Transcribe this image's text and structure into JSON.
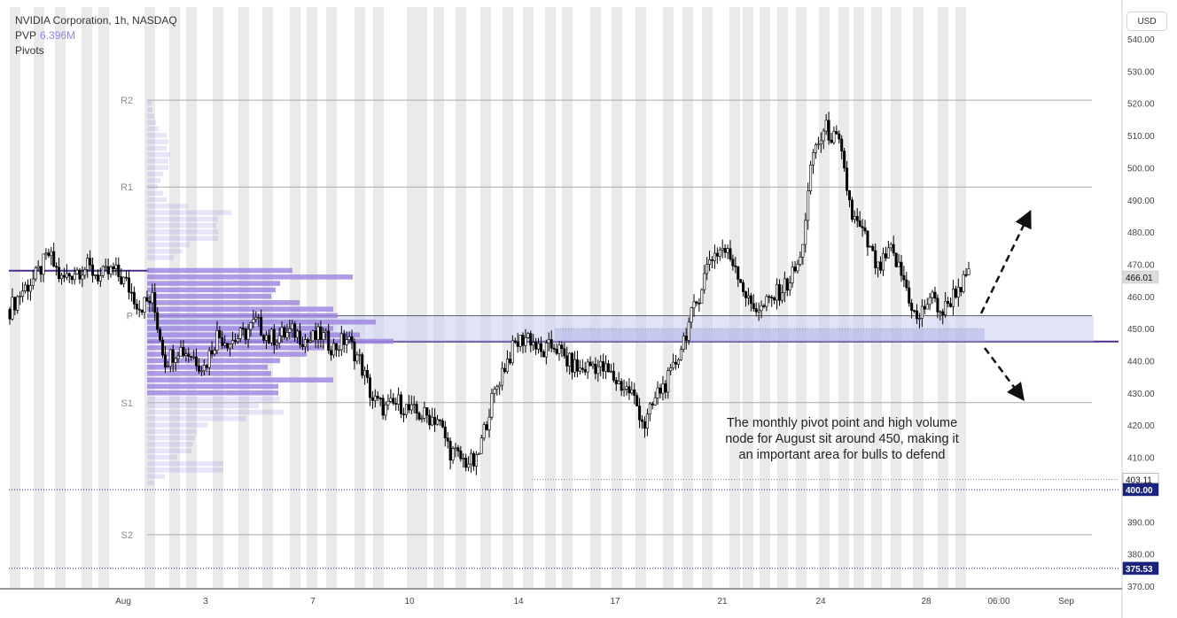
{
  "legend": {
    "symbol_line": "NVIDIA Corporation, 1h, NASDAQ",
    "pvp_label": "PVP",
    "pvp_value": "6.396M",
    "pivots_label": "Pivots"
  },
  "currency_button": "USD",
  "annotation": {
    "line1": "The monthly pivot point and high volume",
    "line2": "node for August sit around 450, making it",
    "line3": "an important area for bulls to defend"
  },
  "colors": {
    "candle_line": "#000000",
    "pivot_band": "#c9cdf0",
    "volume_profile": "#9b82e0",
    "pivot_line": "#4a2f8c",
    "session_stripe": "#eaeaea"
  },
  "chart_data": {
    "type": "candlestick",
    "title": "NVIDIA Corporation, 1h, NASDAQ",
    "y_range": [
      370,
      540
    ],
    "y_ticks": [
      "540.00",
      "530.00",
      "520.00",
      "510.00",
      "500.00",
      "490.00",
      "480.00",
      "470.00",
      "460.00",
      "450.00",
      "440.00",
      "430.00",
      "420.00",
      "410.00",
      "390.00",
      "380.00",
      "370.00"
    ],
    "x_ticks": [
      "Aug",
      "3",
      "7",
      "10",
      "14",
      "17",
      "21",
      "24",
      "28",
      "06:00",
      "Sep"
    ],
    "price_labels": [
      {
        "label": "466.01",
        "value": 466.01,
        "style": "current"
      },
      {
        "label": "403.11",
        "value": 403.11,
        "style": "level"
      },
      {
        "label": "400.00",
        "value": 400.0,
        "style": "dark"
      },
      {
        "label": "375.53",
        "value": 375.53,
        "style": "dark"
      }
    ],
    "pivots": [
      {
        "name": "R2",
        "value": 521
      },
      {
        "name": "R1",
        "value": 494
      },
      {
        "name": "P",
        "value": 454
      },
      {
        "name": "S1",
        "value": 427
      },
      {
        "name": "S2",
        "value": 386
      }
    ],
    "horizontal_levels": [
      {
        "value": 468,
        "style": "solid-purple"
      },
      {
        "value": 446,
        "style": "solid-purple"
      },
      {
        "value": 400,
        "style": "dotted-navy"
      },
      {
        "value": 375.53,
        "style": "dotted-navy"
      },
      {
        "value": 403.11,
        "style": "dotted-gray"
      }
    ],
    "pivot_zone": {
      "from": 446,
      "to": 454
    },
    "arrows": [
      "up",
      "down"
    ],
    "price_path": [
      [
        "Jul 31",
        456
      ],
      [
        "Jul 31",
        462
      ],
      [
        "Jul 31",
        466
      ],
      [
        "Jul 31",
        473
      ],
      [
        "Aug 1",
        465
      ],
      [
        "Aug 1",
        468
      ],
      [
        "Aug 1",
        469
      ],
      [
        "Aug 1",
        466
      ],
      [
        "Aug 2",
        468
      ],
      [
        "Aug 2",
        464
      ],
      [
        "Aug 2",
        457
      ],
      [
        "Aug 2",
        459
      ],
      [
        "Aug 3",
        440
      ],
      [
        "Aug 3",
        444
      ],
      [
        "Aug 3",
        442
      ],
      [
        "Aug 4",
        438
      ],
      [
        "Aug 4",
        448
      ],
      [
        "Aug 4",
        446
      ],
      [
        "Aug 7",
        448
      ],
      [
        "Aug 7",
        452
      ],
      [
        "Aug 7",
        447
      ],
      [
        "Aug 8",
        448
      ],
      [
        "Aug 8",
        449
      ],
      [
        "Aug 8",
        446
      ],
      [
        "Aug 9",
        448
      ],
      [
        "Aug 9",
        444
      ],
      [
        "Aug 9",
        447
      ],
      [
        "Aug 10",
        440
      ],
      [
        "Aug 10",
        428
      ],
      [
        "Aug 10",
        425
      ],
      [
        "Aug 11",
        427
      ],
      [
        "Aug 11",
        424
      ],
      [
        "Aug 11",
        423
      ],
      [
        "Aug 14",
        422
      ],
      [
        "Aug 14",
        412
      ],
      [
        "Aug 14",
        409
      ],
      [
        "Aug 15",
        408
      ],
      [
        "Aug 15",
        425
      ],
      [
        "Aug 15",
        437
      ],
      [
        "Aug 15",
        445
      ],
      [
        "Aug 16",
        448
      ],
      [
        "Aug 16",
        442
      ],
      [
        "Aug 16",
        445
      ],
      [
        "Aug 17",
        440
      ],
      [
        "Aug 17",
        437
      ],
      [
        "Aug 17",
        439
      ],
      [
        "Aug 18",
        437
      ],
      [
        "Aug 18",
        433
      ],
      [
        "Aug 18",
        430
      ],
      [
        "Aug 21",
        420
      ],
      [
        "Aug 21",
        430
      ],
      [
        "Aug 21",
        435
      ],
      [
        "Aug 21",
        447
      ],
      [
        "Aug 22",
        458
      ],
      [
        "Aug 22",
        472
      ],
      [
        "Aug 22",
        475
      ],
      [
        "Aug 23",
        470
      ],
      [
        "Aug 23",
        458
      ],
      [
        "Aug 23",
        456
      ],
      [
        "Aug 24",
        460
      ],
      [
        "Aug 24",
        464
      ],
      [
        "Aug 24",
        471
      ],
      [
        "Aug 24",
        505
      ],
      [
        "Aug 25",
        512
      ],
      [
        "Aug 25",
        507
      ],
      [
        "Aug 25",
        485
      ],
      [
        "Aug 25",
        478
      ],
      [
        "Aug 28",
        468
      ],
      [
        "Aug 28",
        474
      ],
      [
        "Aug 28",
        465
      ],
      [
        "Aug 28",
        452
      ],
      [
        "Aug 29",
        460
      ],
      [
        "Aug 29",
        455
      ],
      [
        "Aug 29",
        462
      ],
      [
        "Aug 29",
        466
      ]
    ],
    "volume_profile": "horizontal histogram of traded volume by price, largest around 450-468"
  }
}
